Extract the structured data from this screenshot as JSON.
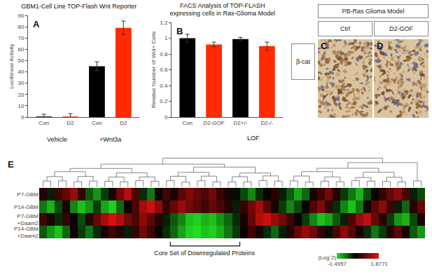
{
  "chart_data": [
    {
      "panel": "A",
      "type": "bar",
      "title": "GBM1-Cell Line TOP-Flash Wnt Reporter",
      "y_label": "Luciferase Activity",
      "categories": [
        "Con",
        "D2",
        "Con",
        "D2"
      ],
      "groups": [
        {
          "name": "Vehicle",
          "positions": [
            0,
            1
          ]
        },
        {
          "name": "+Wnt3a",
          "positions": [
            2,
            3
          ]
        }
      ],
      "values": [
        0.5,
        0.5,
        45,
        79
      ],
      "errors": [
        2,
        2.5,
        4,
        6
      ],
      "colors": [
        "#000000",
        "#ff2a00",
        "#000000",
        "#ff2a00"
      ],
      "ylim": [
        0,
        90
      ],
      "yticks": [
        0,
        10,
        20,
        30,
        40,
        50,
        60,
        70,
        80,
        90
      ],
      "grid": false
    },
    {
      "panel": "B",
      "type": "bar",
      "title": "FACS Analysis of TOP-FLASH\nexpressing cells in Ras-Glioma Model",
      "y_label": "Relative Number of Wnt+ Cells",
      "categories": [
        "Con",
        "D2-GOF",
        "D2+/-",
        "D2-/-"
      ],
      "groups": [
        {
          "name": "LOF",
          "positions": [
            2,
            3
          ]
        }
      ],
      "values": [
        1.0,
        0.92,
        0.99,
        0.9
      ],
      "errors": [
        0.05,
        0.03,
        0.02,
        0.05
      ],
      "colors": [
        "#000000",
        "#ff2a00",
        "#000000",
        "#ff2a00"
      ],
      "ylim": [
        0,
        1.2
      ],
      "yticks": [
        0,
        0.2,
        0.4,
        0.6,
        0.8,
        1,
        1.2
      ],
      "grid": false
    },
    {
      "panel": "E",
      "type": "heatmap",
      "rows": [
        "P7-GBM",
        "P14-GBM",
        "P7-GBM +Daam2",
        "P14-GBM +Daam2"
      ],
      "cells": [
        [
          0.3,
          -0.2,
          0.5,
          0.8,
          1.2,
          0.4,
          -0.6,
          -1.0,
          -0.4,
          0.2,
          0.9,
          1.4,
          0.6,
          -0.3,
          -0.8,
          0.1,
          0.5,
          0.2,
          0.7,
          1.0,
          0.8,
          0.6,
          0.9,
          0.4,
          0.2,
          -0.1,
          -0.5,
          -0.9,
          -0.3,
          0.1,
          0.3,
          -0.2,
          -0.6,
          -1.1,
          -0.7,
          0.2,
          0.5,
          0.9,
          0.3,
          -0.4,
          -0.8,
          -1.2,
          -0.5,
          0.1,
          0.4,
          0.8,
          1.1,
          0.6,
          -0.2,
          -0.5
        ],
        [
          -0.8,
          -1.2,
          -0.5,
          0.2,
          -0.9,
          -1.3,
          -1.0,
          -0.4,
          -1.1,
          -1.4,
          -0.7,
          0.1,
          0.6,
          1.3,
          1.6,
          1.1,
          0.4,
          0.8,
          1.2,
          0.9,
          0.7,
          0.5,
          0.8,
          0.6,
          0.3,
          -0.2,
          0.4,
          0.9,
          1.3,
          0.7,
          0.2,
          -0.4,
          -0.9,
          -0.5,
          0.1,
          0.6,
          1.0,
          0.4,
          -0.3,
          -0.9,
          -1.3,
          -0.8,
          0.2,
          0.7,
          1.1,
          0.5,
          -0.2,
          -0.7,
          0.3,
          0.8
        ],
        [
          0.5,
          0.2,
          -0.3,
          0.4,
          0.1,
          -0.5,
          0.3,
          0.8,
          1.3,
          1.7,
          1.4,
          0.9,
          0.6,
          1.1,
          0.7,
          0.3,
          -0.2,
          -0.6,
          -0.9,
          -1.3,
          -1.4,
          -1.2,
          -1.3,
          -1.0,
          -0.7,
          -0.3,
          0.2,
          0.8,
          1.4,
          1.6,
          1.2,
          0.9,
          0.5,
          0.1,
          -0.4,
          -0.9,
          -1.3,
          -1.1,
          -0.6,
          -0.2,
          0.6,
          1.2,
          1.5,
          0.8,
          0.3,
          -0.4,
          -1.0,
          -1.2,
          -0.5,
          0.2
        ],
        [
          -0.6,
          -1.0,
          -1.3,
          -0.7,
          0.1,
          -0.4,
          -0.8,
          -0.3,
          0.2,
          0.5,
          0.3,
          -0.2,
          0.4,
          0.9,
          0.5,
          0.1,
          -0.3,
          -0.7,
          -1.1,
          -1.4,
          -1.5,
          -1.3,
          -1.4,
          -1.2,
          -0.8,
          -0.4,
          0.1,
          0.5,
          0.2,
          -0.3,
          -0.7,
          -0.2,
          0.3,
          0.8,
          1.2,
          0.9,
          0.4,
          -0.1,
          0.6,
          1.1,
          0.7,
          0.2,
          -0.3,
          -0.8,
          -0.4,
          0.3,
          0.7,
          0.2,
          -0.6,
          -1.0
        ]
      ],
      "zlim": [
        -1.4957,
        1.8771
      ],
      "zticks": [
        -1.4957,
        1.8771
      ],
      "colorbar_title": "(Log 2)",
      "bracket": {
        "text": "Core Set of Downregulated Proteins",
        "columns": [
          17,
          25
        ]
      },
      "tick_labels": "y"
    }
  ],
  "image_panels": {
    "header": "PB-Ras Glioma Model",
    "row_label": "β-cat",
    "columns": [
      {
        "panel": "C",
        "label": "Ctrl"
      },
      {
        "panel": "D",
        "label": "D2-GOF"
      }
    ]
  }
}
